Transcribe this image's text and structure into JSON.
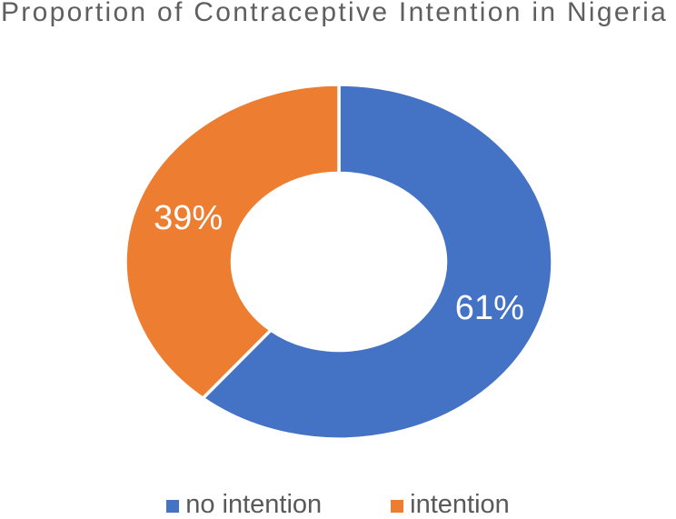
{
  "chart_data": {
    "type": "pie",
    "subtype": "donut",
    "title": "Proportion of Contraceptive Intention in Nigeria",
    "slices": [
      {
        "label": "no intention",
        "value": 61,
        "pct_label": "61%",
        "color": "#4472C4"
      },
      {
        "label": "intention",
        "value": 39,
        "pct_label": "39%",
        "color": "#ED7D31"
      }
    ],
    "hole_ratio": 0.5,
    "start_angle_deg": 0,
    "direction": "clockwise",
    "legend_position": "bottom",
    "label_color": "#FFFFFF",
    "title_color": "#5F5F5F",
    "legend_text_color": "#595959",
    "background_color": "#FFFFFF"
  }
}
